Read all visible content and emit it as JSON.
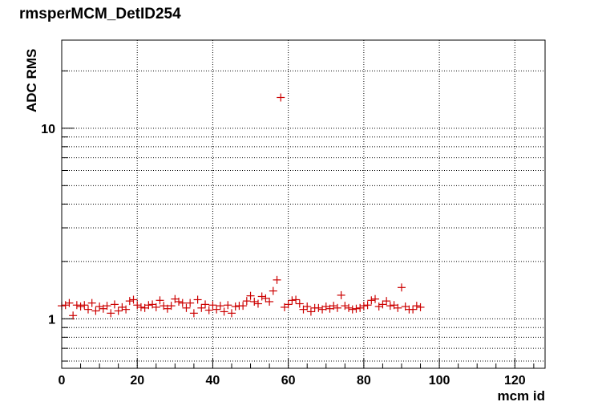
{
  "chart_data": {
    "type": "scatter",
    "title": "rmsperMCM_DetID254",
    "xlabel": "mcm id",
    "ylabel": "ADC RMS",
    "xlim": [
      0,
      128
    ],
    "ylim": [
      0.55,
      29
    ],
    "y_scale": "log",
    "grid": true,
    "marker": "+",
    "color": "#cc0000",
    "x_ticks": [
      0,
      20,
      40,
      60,
      80,
      100,
      120
    ],
    "y_ticks": [
      1,
      10
    ],
    "x": [
      0,
      1,
      2,
      3,
      4,
      5,
      6,
      7,
      8,
      9,
      10,
      11,
      12,
      13,
      14,
      15,
      16,
      17,
      18,
      19,
      20,
      21,
      22,
      23,
      24,
      25,
      26,
      27,
      28,
      29,
      30,
      31,
      32,
      33,
      34,
      35,
      36,
      37,
      38,
      39,
      40,
      41,
      42,
      43,
      44,
      45,
      46,
      47,
      48,
      49,
      50,
      51,
      52,
      53,
      54,
      55,
      56,
      57,
      58,
      59,
      60,
      61,
      62,
      63,
      64,
      65,
      66,
      67,
      68,
      69,
      70,
      71,
      72,
      73,
      74,
      75,
      76,
      77,
      78,
      79,
      80,
      81,
      82,
      83,
      84,
      85,
      86,
      87,
      88,
      89,
      90,
      91,
      92,
      93,
      94,
      95
    ],
    "y": [
      1.17,
      1.18,
      1.21,
      1.04,
      1.18,
      1.16,
      1.18,
      1.12,
      1.21,
      1.1,
      1.16,
      1.13,
      1.17,
      1.07,
      1.19,
      1.1,
      1.15,
      1.12,
      1.24,
      1.26,
      1.18,
      1.15,
      1.14,
      1.18,
      1.19,
      1.15,
      1.25,
      1.17,
      1.13,
      1.17,
      1.27,
      1.23,
      1.21,
      1.14,
      1.21,
      1.07,
      1.26,
      1.14,
      1.19,
      1.11,
      1.18,
      1.12,
      1.17,
      1.09,
      1.18,
      1.07,
      1.16,
      1.17,
      1.17,
      1.24,
      1.32,
      1.23,
      1.2,
      1.31,
      1.28,
      1.23,
      1.4,
      1.6,
      14.5,
      1.15,
      1.19,
      1.25,
      1.26,
      1.2,
      1.12,
      1.16,
      1.09,
      1.14,
      1.14,
      1.12,
      1.16,
      1.13,
      1.17,
      1.14,
      1.33,
      1.17,
      1.14,
      1.12,
      1.13,
      1.14,
      1.17,
      1.18,
      1.25,
      1.27,
      1.16,
      1.19,
      1.24,
      1.17,
      1.18,
      1.14,
      1.46,
      1.16,
      1.12,
      1.12,
      1.17,
      1.15
    ]
  }
}
